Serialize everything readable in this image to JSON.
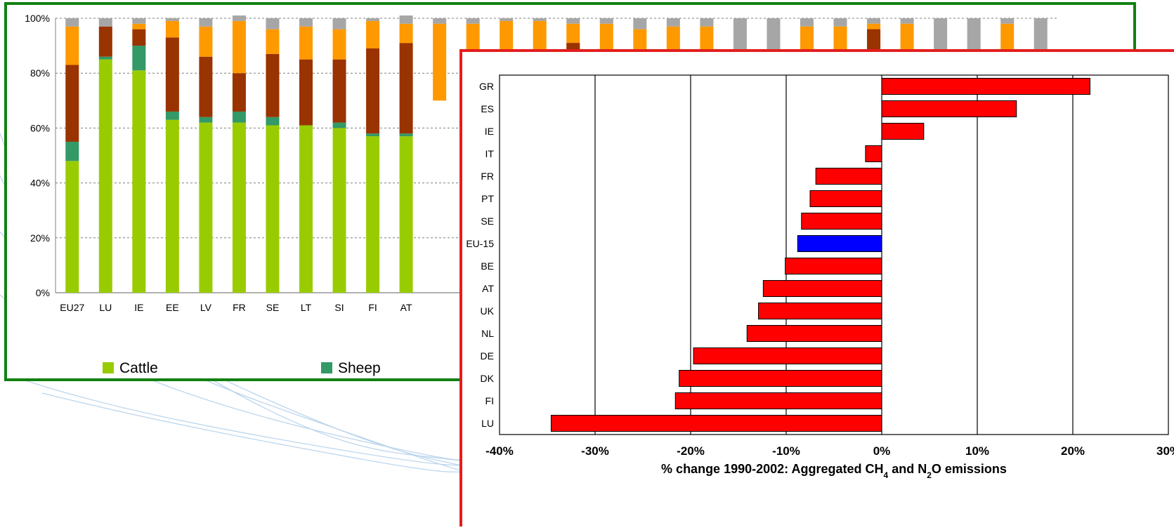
{
  "chart_data": [
    {
      "type": "bar",
      "stacked": true,
      "categories": [
        "EU27",
        "LU",
        "IE",
        "EE",
        "LV",
        "FR",
        "SE",
        "LT",
        "SI",
        "FI",
        "AT",
        "",
        "",
        "",
        "",
        "",
        "",
        "",
        "",
        "",
        "",
        "",
        "",
        "",
        "",
        "",
        "",
        "",
        "",
        ""
      ],
      "visible_category_count": 11,
      "yticks": [
        "0%",
        "20%",
        "40%",
        "60%",
        "80%",
        "100%"
      ],
      "ylim": [
        0,
        100
      ],
      "grid": "horizontal-dashed",
      "legend": [
        {
          "name": "Cattle",
          "color": "#99cc00"
        },
        {
          "name": "Sheep",
          "color": "#339966"
        }
      ],
      "series": [
        {
          "name": "Cattle",
          "color": "#99cc00",
          "values": [
            48,
            85,
            81,
            63,
            62,
            62,
            61,
            61,
            60,
            57,
            57,
            0,
            0,
            0,
            0,
            0,
            0,
            0,
            0,
            0,
            0,
            0,
            0,
            0,
            0,
            0,
            0,
            0,
            0,
            0
          ]
        },
        {
          "name": "Sheep",
          "color": "#339966",
          "values": [
            7,
            1,
            9,
            3,
            2,
            4,
            3,
            0,
            2,
            1,
            1,
            0,
            0,
            0,
            0,
            0,
            0,
            0,
            0,
            0,
            0,
            0,
            0,
            0,
            0,
            0,
            0,
            0,
            0,
            0
          ]
        },
        {
          "color": "#993300",
          "values": [
            28,
            11,
            6,
            27,
            22,
            14,
            23,
            24,
            23,
            31,
            33,
            0,
            0,
            0,
            0,
            0,
            0,
            0,
            0,
            0,
            0,
            0,
            0,
            0,
            0,
            0,
            0,
            0,
            0,
            0
          ]
        },
        {
          "color": "#ff9900",
          "values": [
            14,
            0,
            2,
            6,
            11,
            19,
            9,
            12,
            11,
            10,
            7,
            0,
            0,
            0,
            0,
            0,
            0,
            0,
            0,
            0,
            0,
            0,
            0,
            0,
            0,
            0,
            0,
            0,
            0,
            0
          ]
        },
        {
          "color": "#a6a6a6",
          "values": [
            3,
            3,
            2,
            1,
            3,
            2,
            4,
            3,
            4,
            1,
            3,
            0,
            0,
            0,
            0,
            0,
            0,
            0,
            0,
            0,
            0,
            0,
            0,
            0,
            0,
            0,
            0,
            0,
            0,
            0
          ]
        }
      ],
      "visible_top": {
        "orange_top": [
          0,
          0,
          0,
          0,
          0,
          0,
          0,
          0,
          0,
          0,
          0,
          98,
          98,
          99,
          99,
          98,
          98,
          96,
          97,
          97,
          0,
          0,
          97,
          97,
          98,
          98,
          0,
          0,
          98,
          0
        ],
        "brown_top": [
          0,
          0,
          0,
          0,
          0,
          0,
          0,
          0,
          0,
          0,
          0,
          0,
          0,
          0,
          0,
          91,
          0,
          0,
          0,
          0,
          0,
          0,
          0,
          0,
          96,
          0,
          0,
          0,
          0,
          0
        ]
      }
    },
    {
      "type": "bar",
      "orientation": "horizontal",
      "categories": [
        "GR",
        "ES",
        "IE",
        "IT",
        "FR",
        "PT",
        "SE",
        "EU-15",
        "BE",
        "AT",
        "UK",
        "NL",
        "DE",
        "DK",
        "FI",
        "LU"
      ],
      "values": [
        21.8,
        14.1,
        4.4,
        -1.7,
        -6.9,
        -7.5,
        -8.4,
        -8.8,
        -10.1,
        -12.4,
        -12.9,
        -14.1,
        -19.7,
        -21.2,
        -21.6,
        -34.6
      ],
      "highlight": "EU-15",
      "colors": {
        "bar": "#ff0000",
        "highlight": "#0000ff",
        "gridline": "#000000"
      },
      "xticks": [
        "-40%",
        "-30%",
        "-20%",
        "-10%",
        "0%",
        "10%",
        "20%",
        "30%"
      ],
      "xlim": [
        -40,
        30
      ],
      "xlabel_parts": {
        "pre": "% change 1990-2002: Aggregated CH",
        "sub1": "4",
        "mid": " and N",
        "sub2": "2",
        "post": "O emissions"
      },
      "grid": "vertical"
    }
  ]
}
